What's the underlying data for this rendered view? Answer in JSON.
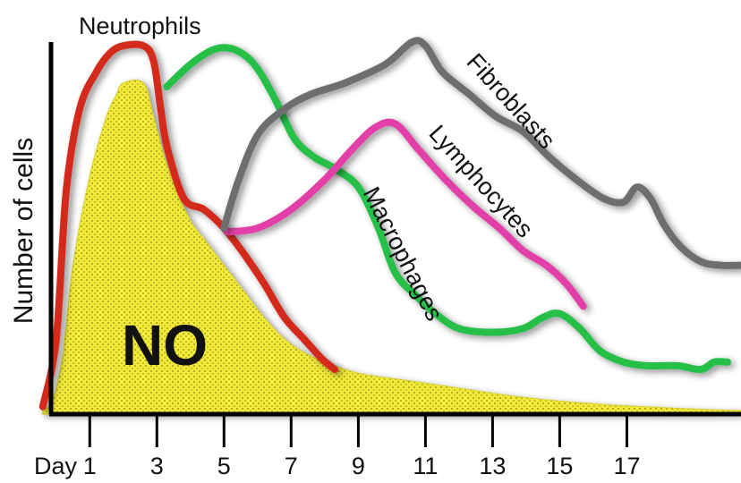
{
  "chart_data": {
    "type": "line",
    "title": "",
    "xlabel": "",
    "ylabel": "Number of cells",
    "x_axis_prefix": "Day",
    "x_ticks": [
      1,
      3,
      5,
      7,
      9,
      11,
      13,
      15,
      17
    ],
    "x_tick_labels": [
      "1",
      "3",
      "5",
      "7",
      "9",
      "11",
      "13",
      "15",
      "17"
    ],
    "xlim": [
      -0.5,
      20.4
    ],
    "ylim": [
      0,
      100
    ],
    "y_ticks_shown": false,
    "grid": false,
    "legend": "none (series labelled directly on curves)",
    "series": [
      {
        "name": "Neutrophils",
        "kind": "line",
        "color": "#d42a1e",
        "points": [
          [
            -0.4,
            2
          ],
          [
            0,
            20
          ],
          [
            0.3,
            60
          ],
          [
            0.7,
            82
          ],
          [
            1.2,
            92
          ],
          [
            1.6,
            97
          ],
          [
            2.0,
            99
          ],
          [
            2.6,
            99
          ],
          [
            2.9,
            95
          ],
          [
            3.1,
            83
          ],
          [
            3.3,
            72
          ],
          [
            3.8,
            58
          ],
          [
            4.4,
            55
          ],
          [
            5.0,
            50
          ],
          [
            5.6,
            43
          ],
          [
            6.2,
            35
          ],
          [
            6.8,
            26
          ],
          [
            7.4,
            20
          ],
          [
            7.9,
            15
          ],
          [
            8.3,
            12
          ]
        ]
      },
      {
        "name": "Macrophages",
        "kind": "line",
        "color": "#27c04a",
        "points": [
          [
            3.3,
            88
          ],
          [
            4.0,
            94
          ],
          [
            4.7,
            98
          ],
          [
            5.3,
            98
          ],
          [
            5.9,
            94
          ],
          [
            6.5,
            85
          ],
          [
            7.1,
            74
          ],
          [
            7.7,
            69
          ],
          [
            8.3,
            66
          ],
          [
            9.0,
            61
          ],
          [
            9.6,
            50
          ],
          [
            10.1,
            38
          ],
          [
            10.7,
            32
          ],
          [
            11.3,
            27
          ],
          [
            12.0,
            23
          ],
          [
            13.0,
            22
          ],
          [
            13.9,
            23
          ],
          [
            14.5,
            26
          ],
          [
            15.0,
            27
          ],
          [
            15.6,
            23
          ],
          [
            16.2,
            17
          ],
          [
            16.9,
            14
          ],
          [
            17.6,
            13
          ],
          [
            18.5,
            13
          ],
          [
            19.2,
            12
          ],
          [
            19.6,
            14
          ],
          [
            20.0,
            14
          ]
        ]
      },
      {
        "name": "Lymphocytes",
        "kind": "line",
        "color": "#e23fa8",
        "points": [
          [
            5.1,
            49
          ],
          [
            6.0,
            50
          ],
          [
            7.0,
            55
          ],
          [
            8.0,
            63
          ],
          [
            8.8,
            71
          ],
          [
            9.5,
            77
          ],
          [
            10.1,
            78
          ],
          [
            10.8,
            71
          ],
          [
            11.6,
            63
          ],
          [
            12.4,
            56
          ],
          [
            13.2,
            50
          ],
          [
            13.9,
            44
          ],
          [
            14.6,
            40
          ],
          [
            15.2,
            35
          ],
          [
            15.7,
            29
          ]
        ]
      },
      {
        "name": "Fibroblasts",
        "kind": "line",
        "color": "#6e6e6e",
        "points": [
          [
            5.0,
            50
          ],
          [
            5.4,
            62
          ],
          [
            6.0,
            75
          ],
          [
            6.8,
            82
          ],
          [
            7.6,
            86
          ],
          [
            8.6,
            89
          ],
          [
            9.8,
            94
          ],
          [
            10.6,
            100
          ],
          [
            11.0,
            99
          ],
          [
            11.5,
            92
          ],
          [
            12.3,
            86
          ],
          [
            13.1,
            80
          ],
          [
            13.9,
            76
          ],
          [
            14.7,
            69
          ],
          [
            15.5,
            63
          ],
          [
            16.3,
            58
          ],
          [
            16.9,
            57
          ],
          [
            17.3,
            61
          ],
          [
            17.7,
            58
          ],
          [
            18.1,
            51
          ],
          [
            18.6,
            45
          ],
          [
            19.2,
            41
          ],
          [
            19.8,
            40
          ],
          [
            20.4,
            40
          ]
        ]
      },
      {
        "name": "NO",
        "kind": "area",
        "color": "#f2ea3a",
        "points": [
          [
            -0.4,
            1
          ],
          [
            -0.1,
            4
          ],
          [
            0.2,
            16
          ],
          [
            0.5,
            40
          ],
          [
            1.0,
            64
          ],
          [
            1.5,
            80
          ],
          [
            1.8,
            86
          ],
          [
            2.0,
            89
          ],
          [
            2.6,
            89
          ],
          [
            2.9,
            80
          ],
          [
            3.2,
            70
          ],
          [
            3.5,
            62
          ],
          [
            4.0,
            52
          ],
          [
            4.5,
            46
          ],
          [
            5.0,
            40
          ],
          [
            5.6,
            33
          ],
          [
            6.1,
            27
          ],
          [
            6.7,
            21
          ],
          [
            7.3,
            17
          ],
          [
            8.0,
            14
          ],
          [
            9.0,
            11
          ],
          [
            10.5,
            9
          ],
          [
            12.0,
            7
          ],
          [
            13.5,
            5
          ],
          [
            15.0,
            3.5
          ],
          [
            16.5,
            2.5
          ],
          [
            18.0,
            1.8
          ],
          [
            19.5,
            1.2
          ],
          [
            20.4,
            1
          ]
        ]
      }
    ]
  }
}
